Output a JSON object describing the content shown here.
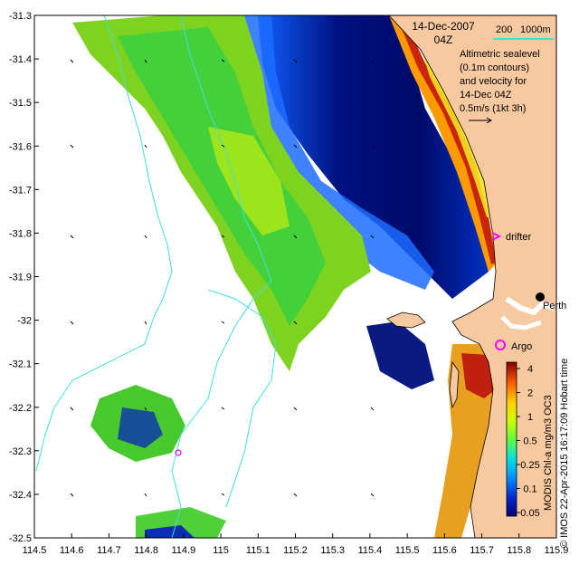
{
  "map": {
    "date_line1": "14-Dec-2007",
    "date_line2": "04Z",
    "bathy_200": "200",
    "bathy_1000": "1000m",
    "legend_lines": [
      "Altimetric sealevel",
      "(0.1m contours)",
      "and velocity for",
      "14-Dec 04Z"
    ],
    "velocity_scale": "0.5m/s (1kt 3h)",
    "drifter_label": "drifter",
    "argo_label": "Argo",
    "perth_label": "Perth",
    "product_label": "MODIS Chl-a mg/m3 OC3",
    "credit": "© IMOS 22-Apr-2015 16:17:09 Hobart time",
    "x_ticks": [
      "114.5",
      "114.6",
      "114.7",
      "114.8",
      "114.9",
      "115",
      "115.1",
      "115.2",
      "115.3",
      "115.4",
      "115.5",
      "115.6",
      "115.7",
      "115.8",
      "115.9"
    ],
    "y_ticks": [
      "-31.3",
      "-31.4",
      "-31.5",
      "-31.6",
      "-31.7",
      "-31.8",
      "-31.9",
      "-32",
      "-32.1",
      "-32.2",
      "-32.3",
      "-32.4",
      "-32.5"
    ],
    "colorbar_ticks": [
      "4",
      "2",
      "1",
      "0.5",
      "0.25",
      "0.1",
      "0.05"
    ],
    "colors": {
      "land": "#f7c9a0",
      "bathymetry": "#40e0e0",
      "drifter": "#ff00ff",
      "argo": "#ff00ff"
    }
  }
}
